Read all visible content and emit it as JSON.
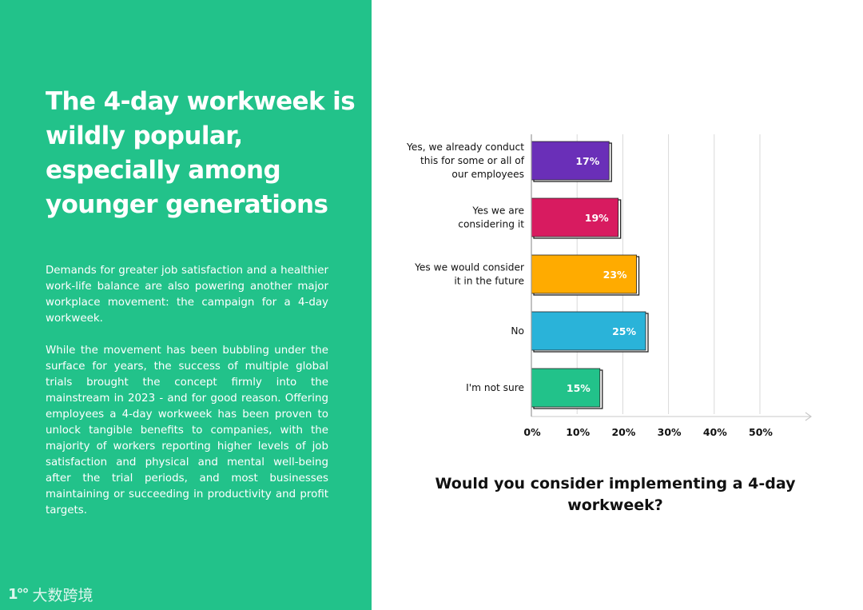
{
  "left": {
    "headline": "The 4-day workweek is wildly popular, especially among younger generations",
    "paragraph1": "Demands for greater job satisfaction and a healthier work-life balance are also powering another major workplace movement: the campaign for a 4-day workweek.",
    "paragraph2": "While the movement has been bubbling under the surface for years, the success of multiple global trials brought the concept firmly into the mainstream in 2023 - and for good reason. Offering employees a 4-day workweek has been proven to unlock tangible benefits to companies, with the majority of workers reporting higher levels of job satisfaction and physical and mental well-being after the trial periods, and most businesses maintaining or succeeding in productivity and profit targets."
  },
  "watermark": {
    "text": "大数跨境",
    "logo_text": "1°°"
  },
  "chart_data": {
    "type": "bar",
    "orientation": "horizontal",
    "title": "Would you consider implementing a 4-day workweek?",
    "categories": [
      [
        "Yes, we already conduct",
        "this for some or all of",
        "our employees"
      ],
      [
        "Yes we are",
        "considering it"
      ],
      [
        "Yes we would consider",
        "it in the future"
      ],
      [
        "No"
      ],
      [
        "I'm not sure"
      ]
    ],
    "values": [
      17,
      19,
      23,
      25,
      15
    ],
    "value_labels": [
      "17%",
      "19%",
      "23%",
      "25%",
      "15%"
    ],
    "colors": [
      "#6a2fb8",
      "#d81b60",
      "#ffab00",
      "#2ab3d9",
      "#22c28a"
    ],
    "xlim": [
      0,
      60
    ],
    "xticks": [
      0,
      10,
      20,
      30,
      40,
      50
    ],
    "xtick_labels": [
      "0%",
      "10%",
      "20%",
      "30%",
      "40%",
      "50%"
    ],
    "grid": true
  }
}
